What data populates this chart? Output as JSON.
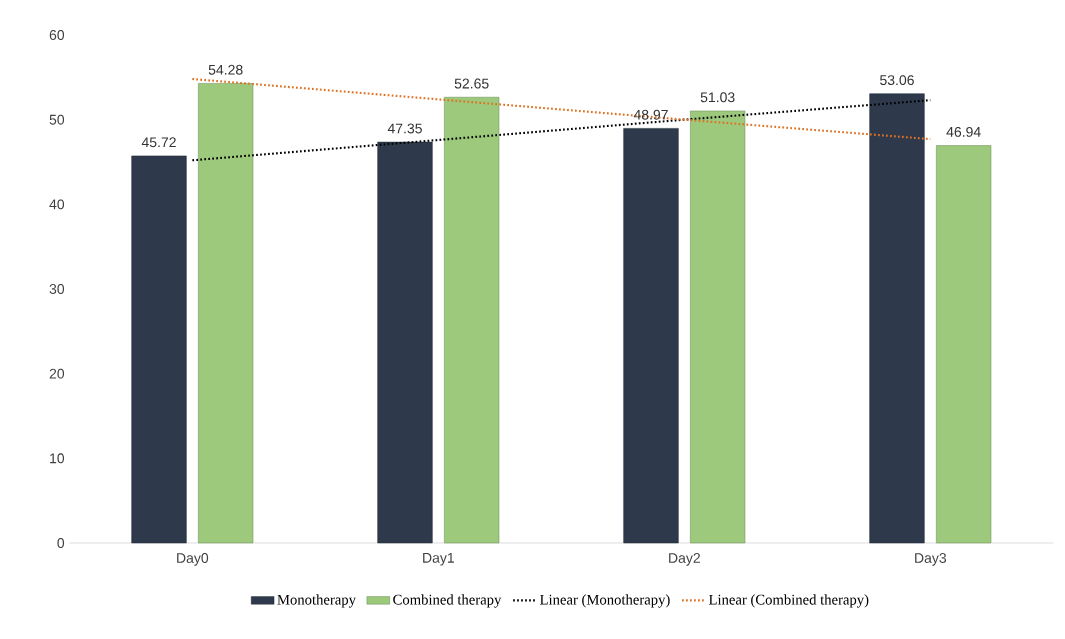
{
  "chart_data": {
    "type": "bar",
    "categories": [
      "Day0",
      "Day1",
      "Day2",
      "Day3"
    ],
    "series": [
      {
        "name": "Monotherapy",
        "color": "#2e3a4b",
        "values": [
          45.72,
          47.35,
          48.97,
          53.06
        ],
        "value_labels": [
          "45.72",
          "47.35",
          "48.97",
          "53.06"
        ]
      },
      {
        "name": "Combined therapy",
        "color": "#9dc97c",
        "values": [
          54.28,
          52.65,
          51.03,
          46.94
        ],
        "value_labels": [
          "54.28",
          "52.65",
          "51.03",
          "46.94"
        ]
      },
      {
        "name": "Linear (Monotherapy)",
        "type": "line",
        "color": "#000000",
        "line_style": "dotted",
        "values": [
          45.2,
          47.6,
          50.0,
          52.3
        ]
      },
      {
        "name": "Linear (Combined therapy)",
        "type": "line",
        "color": "#e07020",
        "line_style": "dotted",
        "values": [
          54.8,
          52.4,
          50.0,
          47.7
        ]
      }
    ],
    "ylim": [
      0,
      60
    ],
    "yticks": [
      0,
      10,
      20,
      30,
      40,
      50,
      60
    ],
    "grid": false,
    "legend": "bottom",
    "marker": "none"
  }
}
